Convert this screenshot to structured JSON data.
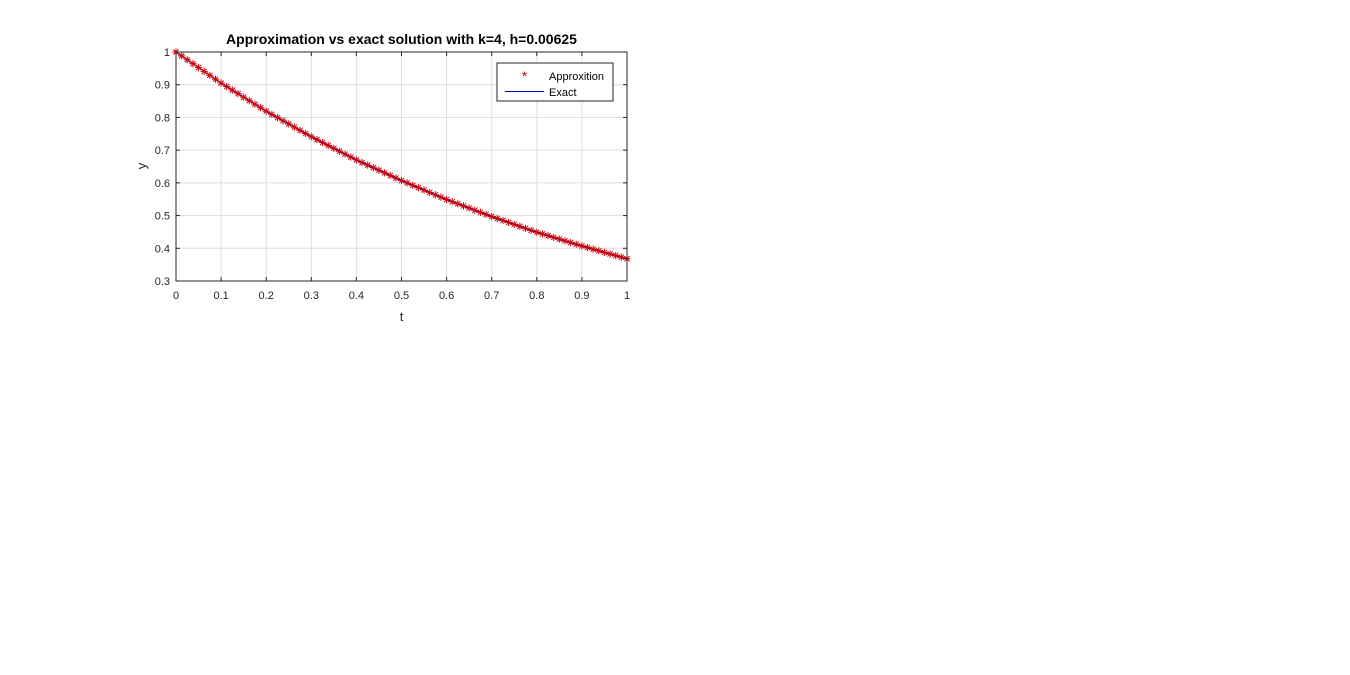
{
  "chart_data": {
    "type": "line",
    "title": "Approximation vs exact solution with k=4, h=0.00625",
    "xlabel": "t",
    "ylabel": "y",
    "xlim": [
      0,
      1
    ],
    "ylim": [
      0.3,
      1
    ],
    "xticks": [
      0,
      0.1,
      0.2,
      0.3,
      0.4,
      0.5,
      0.6,
      0.7,
      0.8,
      0.9,
      1
    ],
    "xtick_labels": [
      "0",
      "0.1",
      "0.2",
      "0.3",
      "0.4",
      "0.5",
      "0.6",
      "0.7",
      "0.8",
      "0.9",
      "1"
    ],
    "yticks": [
      0.3,
      0.4,
      0.5,
      0.6,
      0.7,
      0.8,
      0.9,
      1
    ],
    "ytick_labels": [
      "0.3",
      "0.4",
      "0.5",
      "0.6",
      "0.7",
      "0.8",
      "0.9",
      "1"
    ],
    "grid": true,
    "legend_position": "top-right",
    "series": [
      {
        "name": "Approxition",
        "style": "markers",
        "marker": "asterisk",
        "color": "#d40000",
        "x": [
          0,
          0.1,
          0.2,
          0.3,
          0.4,
          0.5,
          0.6,
          0.7,
          0.8,
          0.9,
          1
        ],
        "y": [
          1.0,
          0.905,
          0.819,
          0.741,
          0.67,
          0.607,
          0.549,
          0.497,
          0.449,
          0.407,
          0.368
        ],
        "marker_step": 0.0125
      },
      {
        "name": "Exact",
        "style": "line",
        "color": "#0000cc",
        "x": [
          0,
          0.1,
          0.2,
          0.3,
          0.4,
          0.5,
          0.6,
          0.7,
          0.8,
          0.9,
          1
        ],
        "y": [
          1.0,
          0.905,
          0.819,
          0.741,
          0.67,
          0.607,
          0.549,
          0.497,
          0.449,
          0.407,
          0.368
        ]
      }
    ]
  }
}
